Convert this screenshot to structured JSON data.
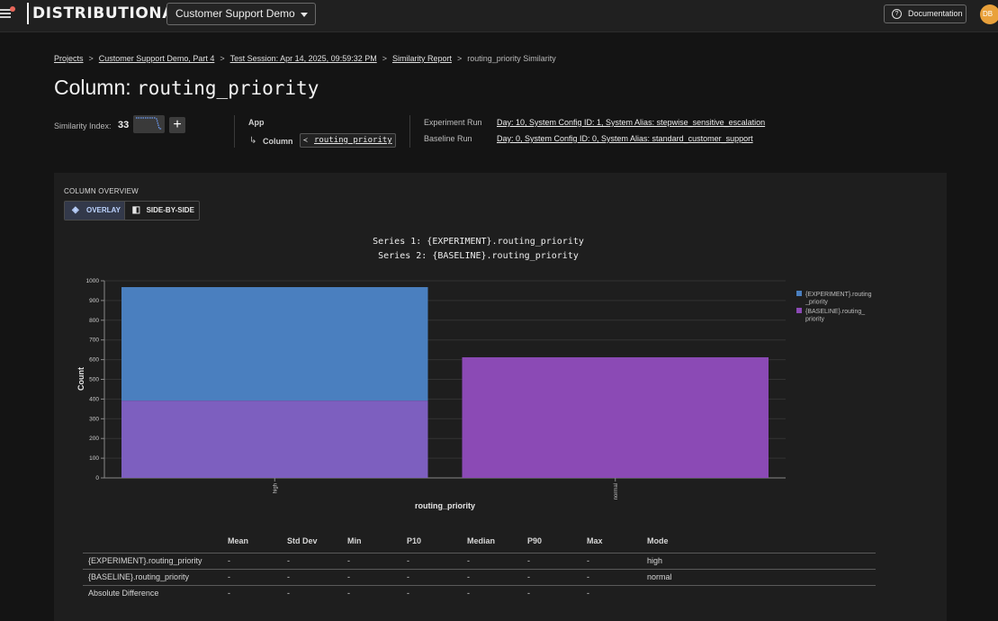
{
  "topbar": {
    "brand": "DISTRIBUTIONAL",
    "project": "Customer Support Demo",
    "docs": "Documentation",
    "avatar": "DB",
    "docs_icon": "help-circle-icon"
  },
  "breadcrumb": {
    "items": [
      "Projects",
      "Customer Support Demo, Part 4",
      "Test Session: Apr 14, 2025, 09:59:32 PM",
      "Similarity Report"
    ],
    "current": "routing_priority Similarity"
  },
  "title": {
    "prefix": "Column:",
    "column": "routing_priority"
  },
  "similarity": {
    "label": "Similarity Index:",
    "value": "33",
    "add": "+"
  },
  "app": {
    "label": "App",
    "arrow": "↳",
    "column_label": "Column",
    "column_value": "routing_priority"
  },
  "runs": {
    "experiment_label": "Experiment Run",
    "experiment_value": "Day: 10, System Config ID: 1, System Alias: stepwise_sensitive_escalation",
    "baseline_label": "Baseline Run",
    "baseline_value": "Day: 0, System Config ID: 0, System Alias: standard_customer_support"
  },
  "overview": {
    "label": "COLUMN OVERVIEW",
    "overlay": "OVERLAY",
    "side_by_side": "SIDE-BY-SIDE"
  },
  "chart_data": {
    "type": "bar",
    "title": "Series 1: {EXPERIMENT}.routing_priority",
    "subtitle": "Series 2: {BASELINE}.routing_priority",
    "categories": [
      "high",
      "normal"
    ],
    "series": [
      {
        "name": "{EXPERIMENT}.routing_priority",
        "values": [
          968,
          0
        ],
        "color": "#4a7fbf"
      },
      {
        "name": "{BASELINE}.routing_priority",
        "values": [
          392,
          612
        ],
        "color": "#8b4ab5"
      }
    ],
    "overlap_color": "#7d5fbf",
    "xlabel": "routing_priority",
    "ylabel": "Count",
    "ylim": [
      0,
      1000
    ],
    "yticks": [
      0,
      100,
      200,
      300,
      400,
      500,
      600,
      700,
      800,
      900,
      1000
    ],
    "legend": [
      "{EXPERIMENT}.routing_priority",
      "{BASELINE}.routing_priority"
    ],
    "legend_lines": [
      [
        "{EXPERIMENT}.routing",
        "_priority"
      ],
      [
        "{BASELINE}.routing_",
        "priority"
      ]
    ],
    "legend_position": "right",
    "grid": true
  },
  "stats": {
    "headers": [
      "Mean",
      "Std Dev",
      "Min",
      "P10",
      "Median",
      "P90",
      "Max",
      "Mode"
    ],
    "rows": [
      {
        "name": "{EXPERIMENT}.routing_priority",
        "values": [
          "-",
          "-",
          "-",
          "-",
          "-",
          "-",
          "-",
          "high"
        ]
      },
      {
        "name": "{BASELINE}.routing_priority",
        "values": [
          "-",
          "-",
          "-",
          "-",
          "-",
          "-",
          "-",
          "normal"
        ]
      },
      {
        "name": "Absolute Difference",
        "values": [
          "-",
          "-",
          "-",
          "-",
          "-",
          "-",
          "-",
          ""
        ]
      }
    ]
  }
}
